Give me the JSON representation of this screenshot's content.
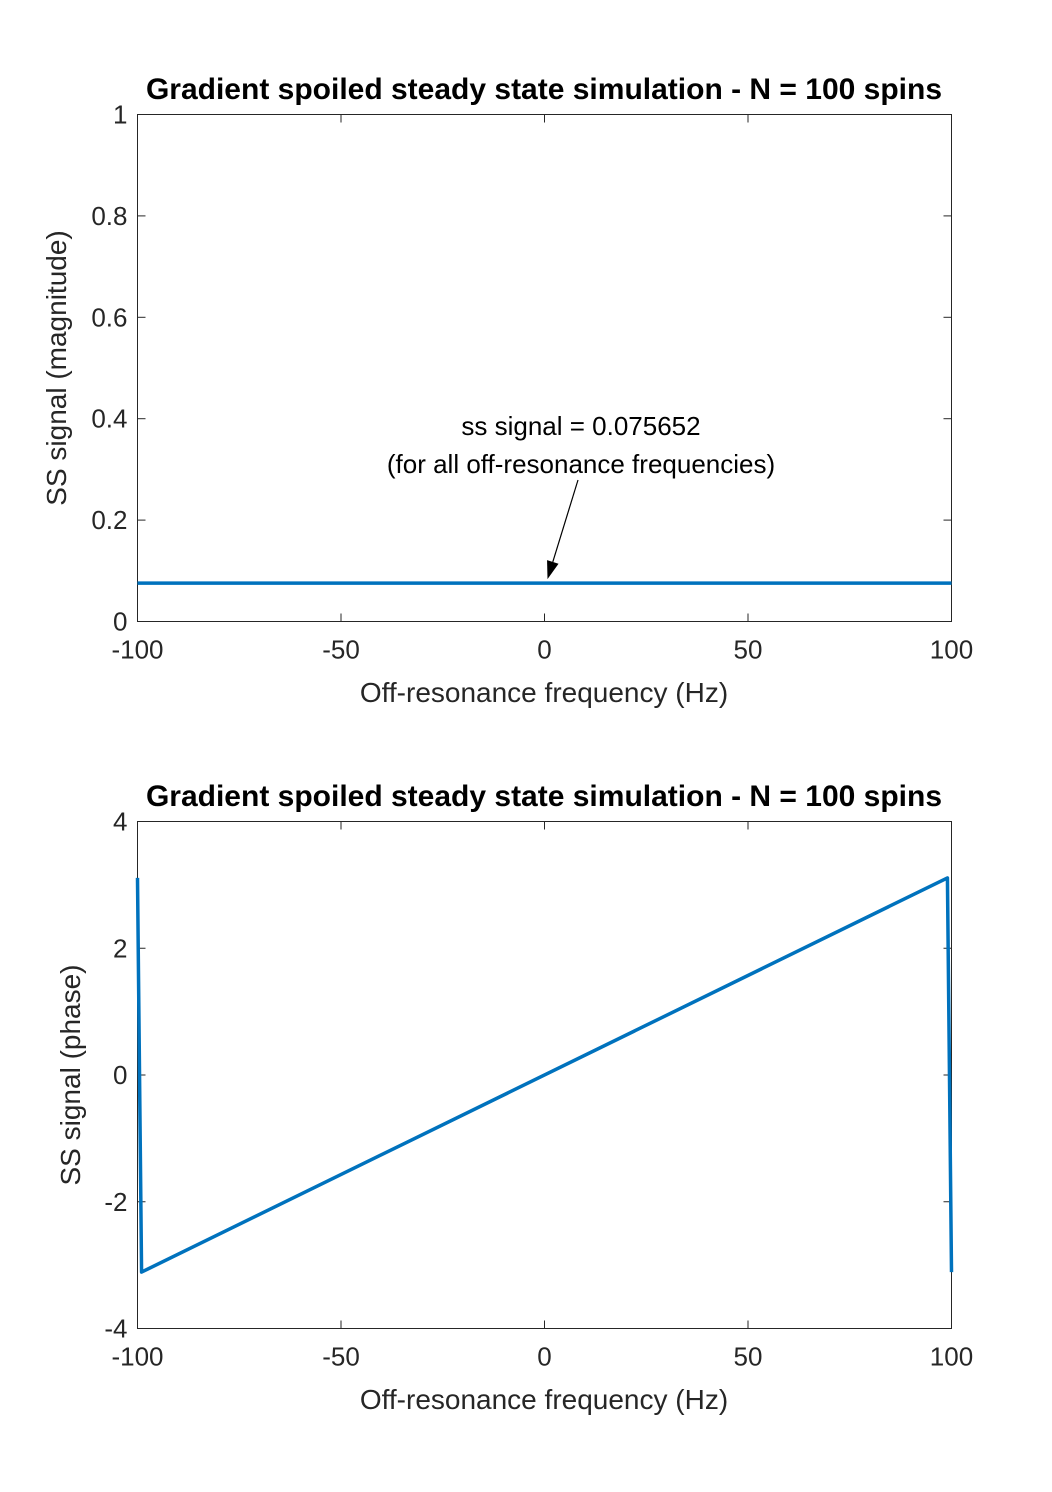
{
  "chart_data": [
    {
      "type": "line",
      "title": "Gradient spoiled steady state simulation - N = 100 spins",
      "xlabel": "Off-resonance frequency (Hz)",
      "ylabel": "SS signal (magnitude)",
      "xlim": [
        -100,
        100
      ],
      "ylim": [
        0,
        1
      ],
      "xticks": [
        -100,
        -50,
        0,
        50,
        100
      ],
      "xtick_labels": [
        "-100",
        "-50",
        "0",
        "50",
        "100"
      ],
      "yticks": [
        0,
        0.2,
        0.4,
        0.6,
        0.8,
        1
      ],
      "ytick_labels": [
        "0",
        "0.2",
        "0.4",
        "0.6",
        "0.8",
        "1"
      ],
      "grid": false,
      "line_color": "#0072BD",
      "series": [
        {
          "x": [
            -100,
            100
          ],
          "y": [
            0.075652,
            0.075652
          ]
        }
      ],
      "annotation": {
        "lines": [
          "ss signal = 0.075652",
          "(for all off-resonance frequencies)"
        ],
        "arrow_to": [
          0,
          0.075652
        ]
      }
    },
    {
      "type": "line",
      "title": "Gradient spoiled steady state simulation - N = 100 spins",
      "xlabel": "Off-resonance frequency (Hz)",
      "ylabel": "SS signal (phase)",
      "xlim": [
        -100,
        100
      ],
      "ylim": [
        -4,
        4
      ],
      "xticks": [
        -100,
        -50,
        0,
        50,
        100
      ],
      "xtick_labels": [
        "-100",
        "-50",
        "0",
        "50",
        "100"
      ],
      "yticks": [
        -4,
        -2,
        0,
        2,
        4
      ],
      "ytick_labels": [
        "-4",
        "-2",
        "0",
        "2",
        "4"
      ],
      "grid": false,
      "line_color": "#0072BD",
      "series": [
        {
          "x": [
            -100,
            -99,
            99,
            100
          ],
          "y": [
            3.11,
            -3.11,
            3.11,
            -3.11
          ]
        }
      ]
    }
  ]
}
